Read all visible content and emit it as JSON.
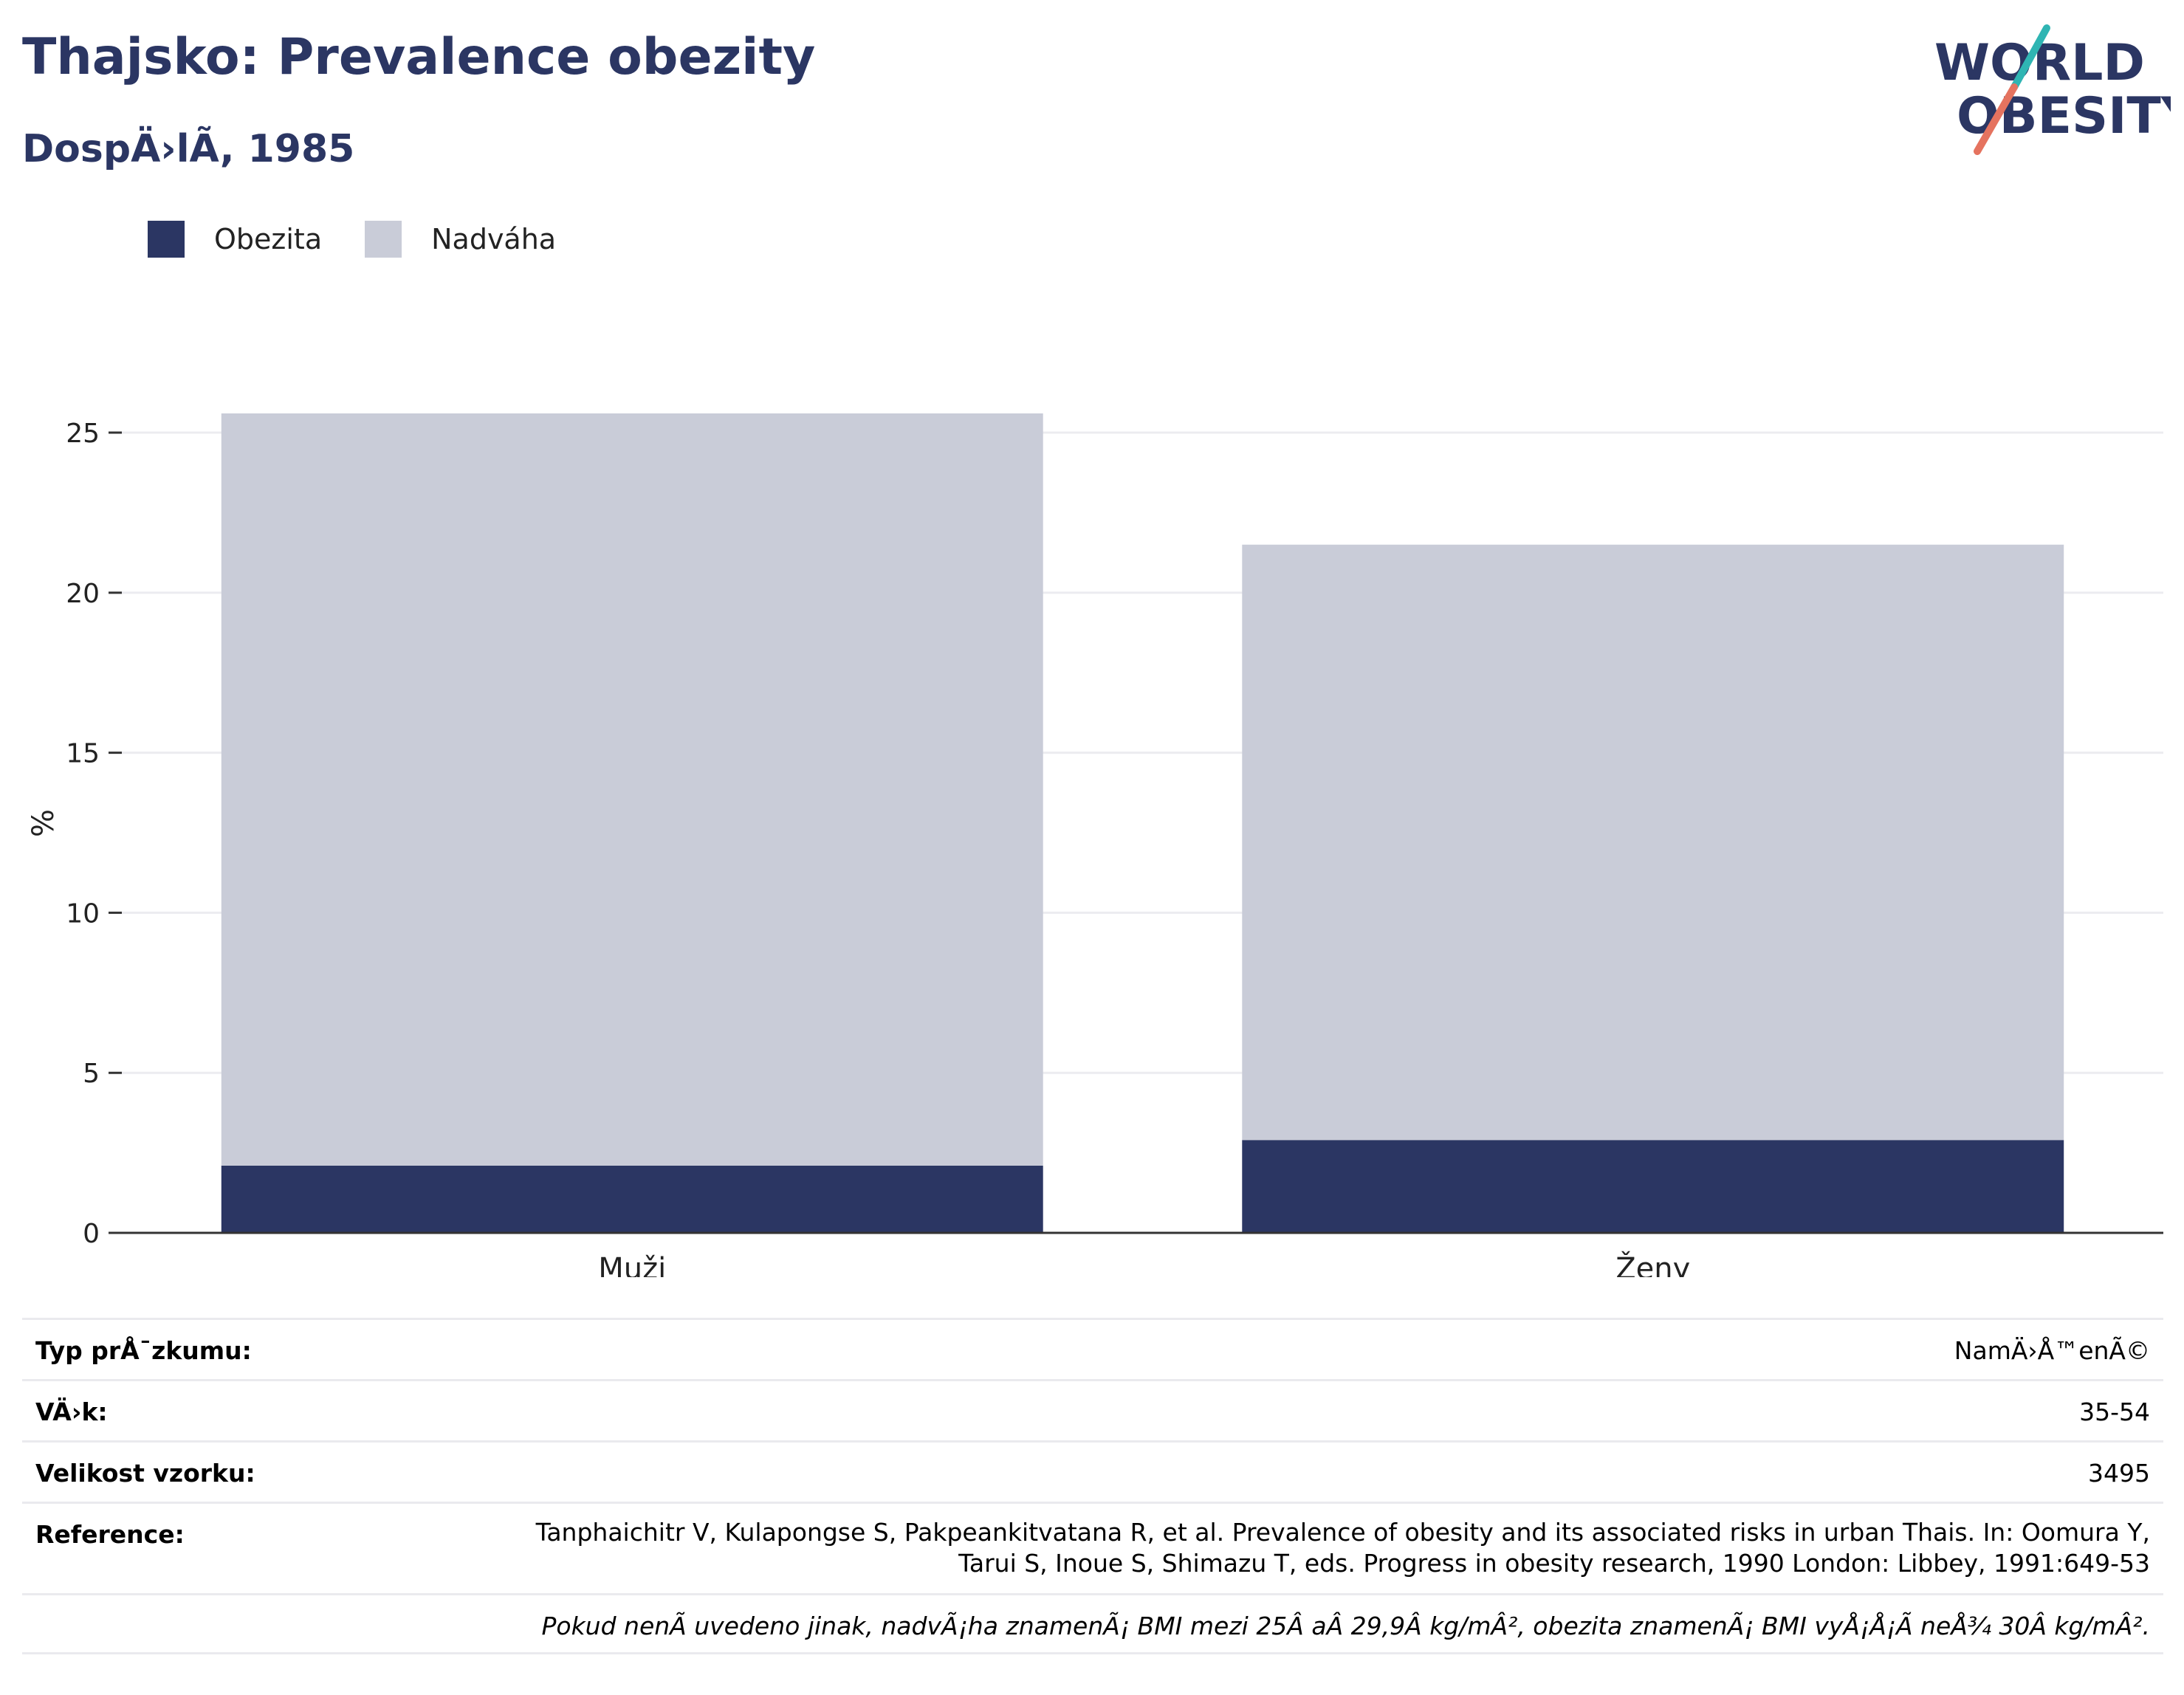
{
  "header": {
    "title": "Thajsko: Prevalence obezity",
    "subtitle": "DospÄ›lÃ, 1985",
    "logo_line1": "WORLD",
    "logo_line2": "OBESITY"
  },
  "colors": {
    "title": "#2b3663",
    "obesity": "#2b3663",
    "overweight": "#c9ccd8",
    "logo_teal": "#2fb5b3",
    "logo_coral": "#e5735f"
  },
  "legend": [
    {
      "label": "Obezita",
      "color": "#2b3663"
    },
    {
      "label": "Nadváha",
      "color": "#c9ccd8"
    }
  ],
  "chart_data": {
    "type": "bar",
    "stacked": true,
    "categories": [
      "Muži",
      "Ženy"
    ],
    "series": [
      {
        "name": "Obezita",
        "values": [
          2.1,
          2.9
        ]
      },
      {
        "name": "Nadváha",
        "values": [
          23.5,
          18.6
        ]
      }
    ],
    "totals": [
      25.6,
      21.5
    ],
    "ylabel": "%",
    "ylim": [
      0,
      25.6
    ],
    "yticks": [
      0,
      5,
      10,
      15,
      20,
      25
    ],
    "grid": true,
    "legend_position": "top-left"
  },
  "details": {
    "study_type_label": "Typ prÅ¯zkumu:",
    "study_type_value": "NamÄ›Å™enÃ©",
    "age_label": "VÄ›k:",
    "age_value": "35-54",
    "sample_label": "Velikost vzorku:",
    "sample_value": "3495",
    "reference_label": "Reference:",
    "reference_line1": "Tanphaichitr V, Kulapongse S, Pakpeankitvatana R, et al. Prevalence of obesity and its associated risks in urban Thais. In: Oomura Y,",
    "reference_line2": "Tarui S, Inoue S, Shimazu T, eds. Progress in obesity research, 1990 London: Libbey, 1991:649-53",
    "note": "Pokud nenÃ uvedeno jinak, nadvÃ¡ha znamenÃ¡ BMI mezi 25Â aÂ 29,9Â kg/mÂ², obezita znamenÃ¡ BMI vyÅ¡Å¡Ã neÅ¾ 30Â kg/mÂ²."
  }
}
